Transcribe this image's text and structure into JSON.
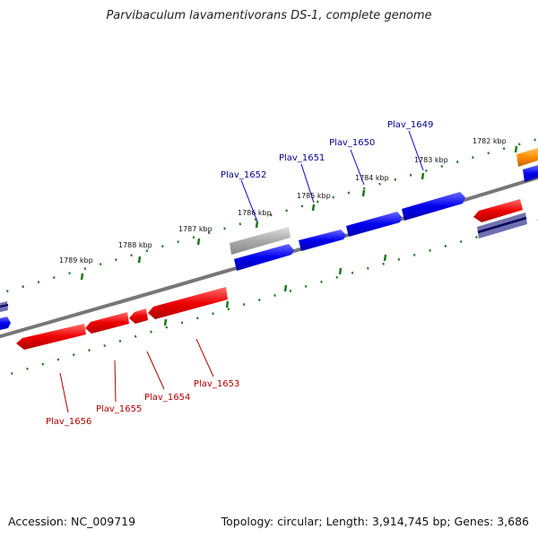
{
  "title": "Parvibaculum lavamentivorans DS-1, complete genome",
  "footer": {
    "accession": "Accession: NC_009719",
    "info": "Topology: circular; Length: 3,914,745 bp; Genes: 3,686"
  },
  "ticks": [
    {
      "label": "1782 kbp"
    },
    {
      "label": "1783 kbp"
    },
    {
      "label": "1784 kbp"
    },
    {
      "label": "1785 kbp"
    },
    {
      "label": "1786 kbp"
    },
    {
      "label": "1787 kbp"
    },
    {
      "label": "1788 kbp"
    },
    {
      "label": "1789 kbp"
    }
  ],
  "genes_top": [
    {
      "name": "Plav_1649"
    },
    {
      "name": "Plav_1650"
    },
    {
      "name": "Plav_1651"
    },
    {
      "name": "Plav_1652"
    }
  ],
  "genes_bottom": [
    {
      "name": "Plav_1653"
    },
    {
      "name": "Plav_1654"
    },
    {
      "name": "Plav_1655"
    },
    {
      "name": "Plav_1656"
    }
  ],
  "colors": {
    "forward": "#0000ee",
    "reverse": "#ee0000",
    "pseudo": "#aaaaaa",
    "other": "#ff8c00",
    "backbone": "#777777",
    "tick": "#1a7a1a",
    "label_forward": "#00008b",
    "label_reverse": "#b00000"
  }
}
